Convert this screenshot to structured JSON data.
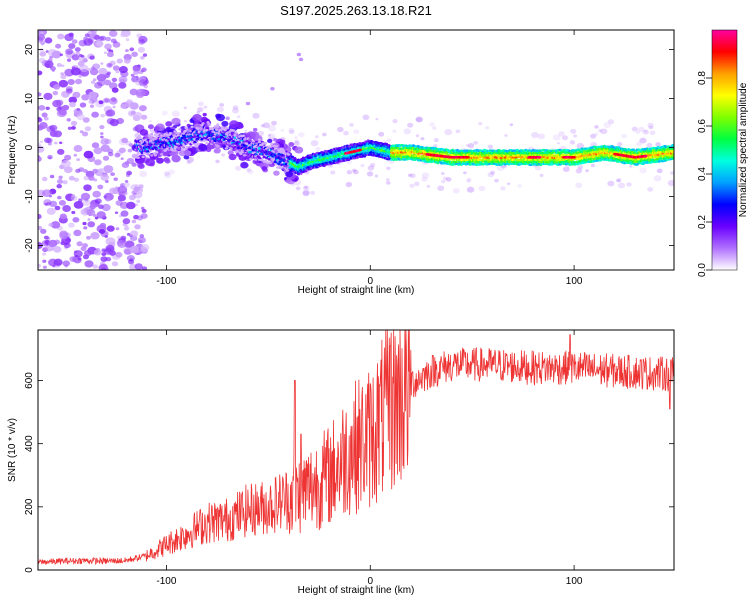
{
  "title": "S197.2025.263.13.18.R21",
  "colors": {
    "snr_line": "#ee3333",
    "frame": "#000000"
  },
  "chart_data": [
    {
      "type": "heatmap",
      "title": "S197.2025.263.13.18.R21",
      "xlabel": "Height of straight line (km)",
      "ylabel": "Frequency (Hz)",
      "xlim": [
        -163,
        149
      ],
      "ylim": [
        -25,
        24
      ],
      "xticks": [
        -100,
        0,
        100
      ],
      "yticks": [
        -20,
        -10,
        0,
        10,
        20
      ],
      "x_tick_labels": [
        "-100",
        "0",
        "100"
      ],
      "y_tick_labels": [
        "-20",
        "-10",
        "0",
        "10",
        "20"
      ],
      "colorbar": {
        "label": "Normalized spectral amplitude",
        "range": [
          0,
          1
        ],
        "ticks": [
          0.0,
          0.2,
          0.4,
          0.6,
          0.8
        ],
        "tick_labels": [
          "0.0",
          "0.2",
          "0.4",
          "0.6",
          "0.8"
        ],
        "colors": [
          "#ffffff",
          "#b070ff",
          "#6a00ff",
          "#0000ff",
          "#00a0ff",
          "#00ffe0",
          "#00ff40",
          "#80ff00",
          "#ffff00",
          "#ffa000",
          "#ff0000",
          "#ff00a0"
        ]
      },
      "ridge": {
        "x": [
          -115,
          -100,
          -90,
          -80,
          -70,
          -60,
          -50,
          -45,
          -40,
          -35,
          -30,
          -20,
          -10,
          0,
          10,
          20,
          40,
          60,
          75,
          90,
          100,
          115,
          130,
          149
        ],
        "freq": [
          0,
          1,
          2,
          3,
          2,
          0,
          -1,
          -2,
          -3,
          -4,
          -3,
          -2,
          -1,
          0,
          -1,
          -1,
          -2,
          -2,
          -2,
          -2,
          -2,
          -1,
          -2,
          -1
        ]
      },
      "noise_region_km": [
        -163,
        -110
      ]
    },
    {
      "type": "line",
      "xlabel": "Height of straight line (km)",
      "ylabel": "SNR (10 * v/v)",
      "xlim": [
        -163,
        149
      ],
      "ylim": [
        0,
        760
      ],
      "xticks": [
        -100,
        0,
        100
      ],
      "yticks": [
        0,
        200,
        400,
        600
      ],
      "x_tick_labels": [
        "-100",
        "0",
        "100"
      ],
      "y_tick_labels": [
        "0",
        "200",
        "400",
        "600"
      ],
      "series": [
        {
          "name": "SNR",
          "x": [
            -163,
            -150,
            -140,
            -130,
            -120,
            -110,
            -100,
            -90,
            -80,
            -70,
            -60,
            -50,
            -40,
            -30,
            -20,
            -10,
            0,
            10,
            20,
            30,
            40,
            60,
            80,
            100,
            120,
            149
          ],
          "y": [
            25,
            28,
            30,
            28,
            30,
            45,
            80,
            115,
            150,
            160,
            190,
            200,
            230,
            260,
            300,
            380,
            420,
            520,
            590,
            630,
            650,
            650,
            640,
            640,
            630,
            620
          ],
          "spikes": [
            {
              "x": -37,
              "y": 600
            },
            {
              "x": -34,
              "y": 430
            },
            {
              "x": 10,
              "y": 710
            },
            {
              "x": 98,
              "y": 430
            },
            {
              "x": 98,
              "y": 745
            },
            {
              "x": 147,
              "y": 510
            }
          ]
        }
      ]
    }
  ]
}
